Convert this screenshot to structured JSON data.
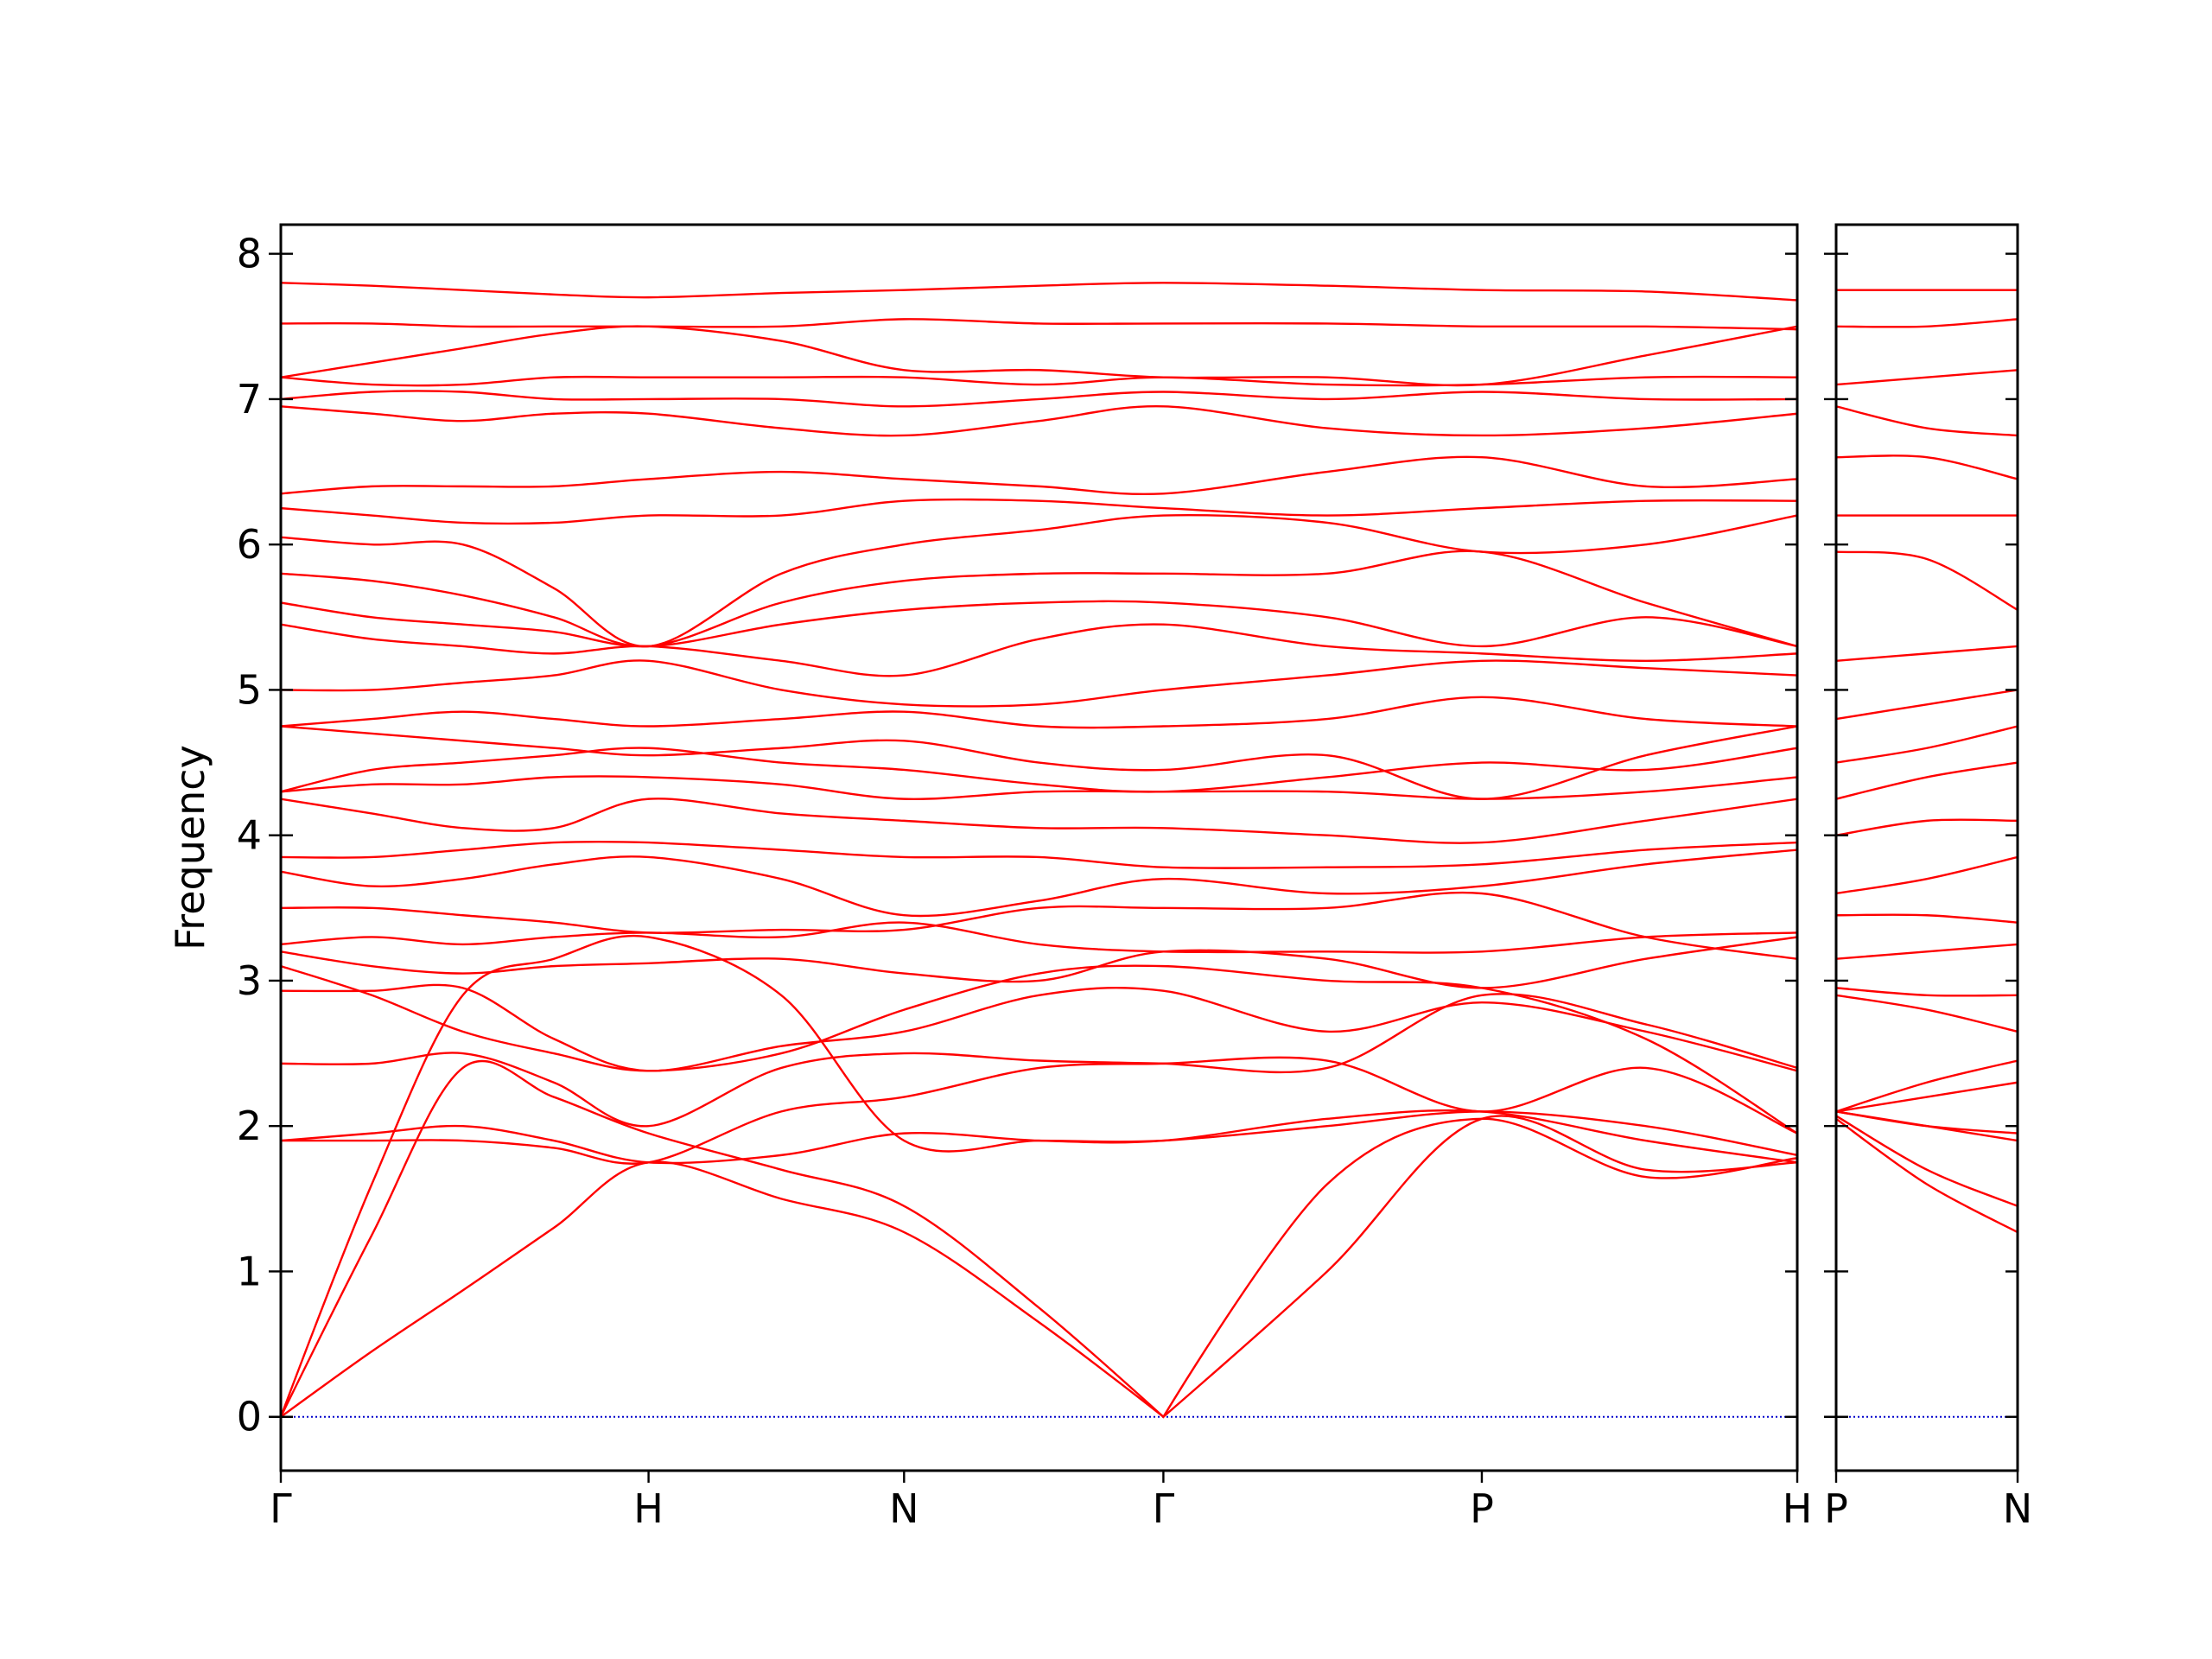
{
  "chart_data": [
    {
      "type": "line",
      "y_label": "Frequency",
      "color": "#ff0000",
      "linewidth": 2.4,
      "baseline": 0,
      "baseline_color": "#0000cc",
      "xlim": [
        0,
        1.0
      ],
      "ylim": [
        -0.37,
        8.2
      ],
      "xticks": [
        {
          "value": 0,
          "label": "Γ"
        },
        {
          "value": 0.2425,
          "label": "H"
        },
        {
          "value": 0.411,
          "label": "N"
        },
        {
          "value": 0.582,
          "label": "Γ"
        },
        {
          "value": 0.792,
          "label": "P"
        },
        {
          "value": 1.0,
          "label": "H"
        }
      ],
      "yticks": [
        0,
        1,
        2,
        3,
        4,
        5,
        6,
        7,
        8
      ],
      "x": [
        0,
        0.06,
        0.12,
        0.18,
        0.2425,
        0.33,
        0.411,
        0.5,
        0.582,
        0.69,
        0.792,
        0.9,
        1.0
      ],
      "series": [
        {
          "values": [
            0,
            0.45,
            0.87,
            1.3,
            1.75,
            1.5,
            1.27,
            0.65,
            0,
            1.0,
            2.05,
            1.7,
            1.75
          ]
        },
        {
          "values": [
            0,
            1.25,
            2.4,
            2.2,
            1.95,
            1.7,
            1.45,
            0.75,
            0,
            1.6,
            2.05,
            1.65,
            1.78
          ]
        },
        {
          "values": [
            0,
            1.6,
            2.9,
            3.15,
            3.3,
            2.9,
            1.9,
            1.9,
            1.9,
            2.0,
            2.1,
            2.0,
            1.8
          ]
        },
        {
          "values": [
            1.9,
            1.95,
            2.0,
            1.9,
            1.75,
            1.8,
            1.95,
            1.9,
            1.9,
            2.05,
            2.1,
            1.9,
            1.75
          ]
        },
        {
          "values": [
            1.9,
            1.9,
            1.9,
            1.85,
            1.75,
            2.1,
            2.2,
            2.4,
            2.43,
            2.45,
            2.1,
            2.4,
            1.95
          ]
        },
        {
          "values": [
            2.43,
            2.43,
            2.5,
            2.3,
            2.0,
            2.4,
            2.5,
            2.45,
            2.43,
            2.4,
            2.9,
            2.7,
            2.4
          ]
        },
        {
          "values": [
            2.93,
            2.93,
            2.95,
            2.6,
            2.38,
            2.55,
            2.65,
            2.9,
            2.93,
            2.65,
            2.85,
            2.65,
            2.38
          ]
        },
        {
          "values": [
            3.1,
            2.9,
            2.65,
            2.5,
            2.38,
            2.5,
            2.8,
            3.05,
            3.1,
            3.0,
            2.95,
            2.6,
            1.95
          ]
        },
        {
          "values": [
            3.2,
            3.1,
            3.05,
            3.1,
            3.12,
            3.15,
            3.05,
            3.0,
            3.2,
            3.15,
            2.95,
            3.15,
            3.3
          ]
        },
        {
          "values": [
            3.25,
            3.3,
            3.25,
            3.3,
            3.33,
            3.3,
            3.4,
            3.25,
            3.2,
            3.2,
            3.2,
            3.3,
            3.33
          ]
        },
        {
          "values": [
            3.5,
            3.5,
            3.45,
            3.4,
            3.33,
            3.35,
            3.35,
            3.5,
            3.5,
            3.5,
            3.6,
            3.3,
            3.15
          ]
        },
        {
          "values": [
            3.75,
            3.65,
            3.7,
            3.8,
            3.85,
            3.7,
            3.45,
            3.55,
            3.7,
            3.6,
            3.65,
            3.8,
            3.9
          ]
        },
        {
          "values": [
            3.85,
            3.85,
            3.9,
            3.95,
            3.95,
            3.9,
            3.85,
            3.85,
            3.78,
            3.78,
            3.8,
            3.9,
            3.95
          ]
        },
        {
          "values": [
            4.25,
            4.15,
            4.05,
            4.05,
            4.25,
            4.15,
            4.1,
            4.05,
            4.05,
            4.0,
            3.95,
            4.1,
            4.25
          ]
        },
        {
          "values": [
            4.3,
            4.35,
            4.35,
            4.4,
            4.4,
            4.35,
            4.25,
            4.3,
            4.3,
            4.3,
            4.25,
            4.3,
            4.4
          ]
        },
        {
          "values": [
            4.3,
            4.45,
            4.5,
            4.55,
            4.6,
            4.5,
            4.45,
            4.35,
            4.3,
            4.4,
            4.5,
            4.45,
            4.6
          ]
        },
        {
          "values": [
            4.75,
            4.7,
            4.65,
            4.6,
            4.55,
            4.6,
            4.65,
            4.5,
            4.45,
            4.55,
            4.25,
            4.55,
            4.75
          ]
        },
        {
          "values": [
            4.75,
            4.8,
            4.85,
            4.8,
            4.75,
            4.8,
            4.85,
            4.75,
            4.75,
            4.8,
            4.95,
            4.8,
            4.75
          ]
        },
        {
          "values": [
            5.0,
            5.0,
            5.05,
            5.1,
            5.2,
            5.0,
            4.9,
            4.9,
            5.0,
            5.1,
            5.2,
            5.15,
            5.1
          ]
        },
        {
          "values": [
            5.45,
            5.35,
            5.3,
            5.25,
            5.3,
            5.2,
            5.1,
            5.35,
            5.45,
            5.3,
            5.25,
            5.2,
            5.25
          ]
        },
        {
          "values": [
            5.6,
            5.5,
            5.45,
            5.4,
            5.3,
            5.45,
            5.55,
            5.6,
            5.6,
            5.5,
            5.3,
            5.5,
            5.3
          ]
        },
        {
          "values": [
            5.8,
            5.75,
            5.65,
            5.5,
            5.3,
            5.6,
            5.75,
            5.8,
            5.8,
            5.8,
            5.95,
            5.6,
            5.3
          ]
        },
        {
          "values": [
            6.05,
            6.0,
            6.0,
            5.7,
            5.3,
            5.8,
            6.0,
            6.1,
            6.2,
            6.15,
            5.95,
            6.0,
            6.2
          ]
        },
        {
          "values": [
            6.25,
            6.2,
            6.15,
            6.15,
            6.2,
            6.2,
            6.3,
            6.3,
            6.25,
            6.2,
            6.25,
            6.3,
            6.3
          ]
        },
        {
          "values": [
            6.35,
            6.4,
            6.4,
            6.4,
            6.45,
            6.5,
            6.45,
            6.4,
            6.35,
            6.5,
            6.6,
            6.4,
            6.45
          ]
        },
        {
          "values": [
            6.95,
            6.9,
            6.85,
            6.9,
            6.9,
            6.8,
            6.75,
            6.85,
            6.95,
            6.8,
            6.75,
            6.8,
            6.9
          ]
        },
        {
          "values": [
            7.0,
            7.05,
            7.05,
            7.0,
            7.0,
            7.0,
            6.95,
            7.0,
            7.05,
            7.0,
            7.05,
            7.0,
            7.0
          ]
        },
        {
          "values": [
            7.15,
            7.1,
            7.1,
            7.15,
            7.15,
            7.15,
            7.15,
            7.1,
            7.15,
            7.1,
            7.1,
            7.15,
            7.15
          ]
        },
        {
          "values": [
            7.15,
            7.25,
            7.35,
            7.45,
            7.5,
            7.4,
            7.2,
            7.2,
            7.15,
            7.15,
            7.1,
            7.3,
            7.5
          ]
        },
        {
          "values": [
            7.52,
            7.52,
            7.5,
            7.5,
            7.5,
            7.5,
            7.55,
            7.52,
            7.52,
            7.52,
            7.5,
            7.5,
            7.48
          ]
        },
        {
          "values": [
            7.8,
            7.78,
            7.75,
            7.72,
            7.7,
            7.73,
            7.75,
            7.78,
            7.8,
            7.78,
            7.75,
            7.74,
            7.68
          ]
        }
      ]
    },
    {
      "type": "line",
      "color": "#ff0000",
      "linewidth": 2.4,
      "baseline": 0,
      "baseline_color": "#0000cc",
      "xlim": [
        0,
        0.12
      ],
      "ylim": [
        -0.37,
        8.2
      ],
      "xticks": [
        {
          "value": 0,
          "label": "P"
        },
        {
          "value": 0.12,
          "label": "N"
        }
      ],
      "x": [
        0,
        0.06,
        0.12
      ],
      "series": [
        {
          "values": [
            2.05,
            1.6,
            1.27
          ]
        },
        {
          "values": [
            2.07,
            1.7,
            1.45
          ]
        },
        {
          "values": [
            2.1,
            2.0,
            1.9
          ]
        },
        {
          "values": [
            2.1,
            2.0,
            1.95
          ]
        },
        {
          "values": [
            2.1,
            2.2,
            2.3
          ]
        },
        {
          "values": [
            2.1,
            2.3,
            2.45
          ]
        },
        {
          "values": [
            2.9,
            2.8,
            2.65
          ]
        },
        {
          "values": [
            2.95,
            2.9,
            2.9
          ]
        },
        {
          "values": [
            3.15,
            3.2,
            3.25
          ]
        },
        {
          "values": [
            3.45,
            3.45,
            3.4
          ]
        },
        {
          "values": [
            3.6,
            3.7,
            3.85
          ]
        },
        {
          "values": [
            4.0,
            4.1,
            4.1
          ]
        },
        {
          "values": [
            4.25,
            4.4,
            4.5
          ]
        },
        {
          "values": [
            4.5,
            4.6,
            4.75
          ]
        },
        {
          "values": [
            4.8,
            4.9,
            5.0
          ]
        },
        {
          "values": [
            5.2,
            5.25,
            5.3
          ]
        },
        {
          "values": [
            5.95,
            5.9,
            5.55
          ]
        },
        {
          "values": [
            6.2,
            6.2,
            6.2
          ]
        },
        {
          "values": [
            6.6,
            6.6,
            6.45
          ]
        },
        {
          "values": [
            6.95,
            6.8,
            6.75
          ]
        },
        {
          "values": [
            7.1,
            7.15,
            7.2
          ]
        },
        {
          "values": [
            7.5,
            7.5,
            7.55
          ]
        },
        {
          "values": [
            7.75,
            7.75,
            7.75
          ]
        }
      ]
    }
  ]
}
